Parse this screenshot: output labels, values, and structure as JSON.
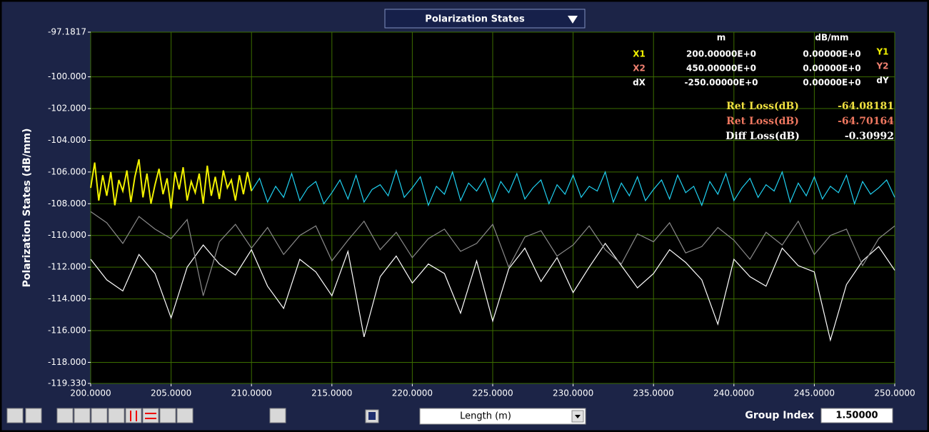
{
  "chart_data": {
    "type": "line",
    "title": "Polarization States",
    "ylabel": "Polarization  States (dB/mm)",
    "xlabel": "Length (m)",
    "xlim": [
      200,
      250
    ],
    "xticks": [
      {
        "value": 200,
        "label": "200.0000"
      },
      {
        "value": 205,
        "label": "205.0000"
      },
      {
        "value": 210,
        "label": "210.0000"
      },
      {
        "value": 215,
        "label": "215.0000"
      },
      {
        "value": 220,
        "label": "220.0000"
      },
      {
        "value": 225,
        "label": "225.0000"
      },
      {
        "value": 230,
        "label": "230.0000"
      },
      {
        "value": 235,
        "label": "235.0000"
      },
      {
        "value": 240,
        "label": "240.0000"
      },
      {
        "value": 245,
        "label": "245.0000"
      },
      {
        "value": 250,
        "label": "250.0000"
      }
    ],
    "ylim": [
      -119.33,
      -97.1817
    ],
    "yticks": [
      -97.1817,
      {
        "value": -100,
        "label": "-100.000"
      },
      {
        "value": -102,
        "label": "-102.000"
      },
      {
        "value": -104,
        "label": "-104.000"
      },
      {
        "value": -106,
        "label": "-106.000"
      },
      {
        "value": -108,
        "label": "-108.000"
      },
      {
        "value": -110,
        "label": "-110.000"
      },
      {
        "value": -112,
        "label": "-112.000"
      },
      {
        "value": -114,
        "label": "-114.000"
      },
      {
        "value": -116,
        "label": "-116.000"
      },
      {
        "value": -118,
        "label": "-118.000"
      },
      {
        "value": -119.33,
        "label": "-119.330"
      }
    ],
    "grid": true,
    "series": [
      {
        "color": "#ffffff",
        "x": [
          200,
          201,
          202,
          203,
          204,
          205,
          206,
          207,
          208,
          209,
          210,
          211,
          212,
          213,
          214,
          215,
          216,
          217,
          218,
          219,
          220,
          221,
          222,
          223,
          224,
          225,
          226,
          227,
          228,
          229,
          230,
          231,
          232,
          233,
          234,
          235,
          236,
          237,
          238,
          239,
          240,
          241,
          242,
          243,
          244,
          245,
          246,
          247,
          248,
          249,
          250
        ],
        "values": [
          -111.5,
          -112.8,
          -113.5,
          -111.2,
          -112.4,
          -115.2,
          -112.0,
          -110.6,
          -111.8,
          -112.5,
          -110.9,
          -113.2,
          -114.6,
          -111.5,
          -112.3,
          -113.8,
          -111.0,
          -116.4,
          -112.6,
          -111.3,
          -113.0,
          -111.8,
          -112.4,
          -114.9,
          -111.6,
          -115.4,
          -112.1,
          -110.8,
          -112.9,
          -111.4,
          -113.6,
          -112.0,
          -110.5,
          -111.9,
          -113.3,
          -112.4,
          -110.9,
          -111.7,
          -112.8,
          -115.6,
          -111.5,
          -112.6,
          -113.2,
          -110.8,
          -111.9,
          -112.3,
          -116.6,
          -113.1,
          -111.6,
          -110.7,
          -112.2
        ]
      },
      {
        "color": "#8a8a8a",
        "x": [
          200,
          201,
          202,
          203,
          204,
          205,
          206,
          207,
          208,
          209,
          210,
          211,
          212,
          213,
          214,
          215,
          216,
          217,
          218,
          219,
          220,
          221,
          222,
          223,
          224,
          225,
          226,
          227,
          228,
          229,
          230,
          231,
          232,
          233,
          234,
          235,
          236,
          237,
          238,
          239,
          240,
          241,
          242,
          243,
          244,
          245,
          246,
          247,
          248,
          249,
          250
        ],
        "values": [
          -108.5,
          -109.2,
          -110.5,
          -108.8,
          -109.6,
          -110.2,
          -109.0,
          -113.8,
          -110.4,
          -109.3,
          -110.8,
          -109.5,
          -111.2,
          -110.0,
          -109.4,
          -111.6,
          -110.3,
          -109.1,
          -110.9,
          -109.8,
          -111.4,
          -110.2,
          -109.6,
          -111.0,
          -110.5,
          -109.3,
          -112.0,
          -110.1,
          -109.7,
          -111.3,
          -110.6,
          -109.4,
          -110.9,
          -111.8,
          -109.9,
          -110.4,
          -109.2,
          -111.1,
          -110.7,
          -109.5,
          -110.3,
          -111.5,
          -109.8,
          -110.6,
          -109.1,
          -111.2,
          -110.0,
          -109.6,
          -111.9,
          -110.2,
          -109.4
        ]
      },
      {
        "color": "#1fd0f0",
        "x": [
          210,
          210.5,
          211,
          211.5,
          212,
          212.5,
          213,
          213.5,
          214,
          214.5,
          215,
          215.5,
          216,
          216.5,
          217,
          217.5,
          218,
          218.5,
          219,
          219.5,
          220,
          220.5,
          221,
          221.5,
          222,
          222.5,
          223,
          223.5,
          224,
          224.5,
          225,
          225.5,
          226,
          226.5,
          227,
          227.5,
          228,
          228.5,
          229,
          229.5,
          230,
          230.5,
          231,
          231.5,
          232,
          232.5,
          233,
          233.5,
          234,
          234.5,
          235,
          235.5,
          236,
          236.5,
          237,
          237.5,
          238,
          238.5,
          239,
          239.5,
          240,
          240.5,
          241,
          241.5,
          242,
          242.5,
          243,
          243.5,
          244,
          244.5,
          245,
          245.5,
          246,
          246.5,
          247,
          247.5,
          248,
          248.5,
          249,
          249.5,
          250
        ],
        "values": [
          -107.2,
          -106.4,
          -107.9,
          -106.9,
          -107.6,
          -106.1,
          -107.8,
          -107.0,
          -106.6,
          -108.0,
          -107.3,
          -106.5,
          -107.7,
          -106.2,
          -107.9,
          -107.1,
          -106.8,
          -107.5,
          -105.9,
          -107.6,
          -107.0,
          -106.3,
          -108.1,
          -106.9,
          -107.4,
          -106.0,
          -107.8,
          -106.7,
          -107.2,
          -106.4,
          -107.9,
          -106.6,
          -107.3,
          -106.1,
          -107.7,
          -107.0,
          -106.5,
          -108.0,
          -106.8,
          -107.4,
          -106.2,
          -107.6,
          -106.9,
          -107.2,
          -106.0,
          -107.9,
          -106.7,
          -107.5,
          -106.3,
          -107.8,
          -107.1,
          -106.5,
          -107.7,
          -106.2,
          -107.3,
          -106.9,
          -108.1,
          -106.6,
          -107.4,
          -106.1,
          -107.8,
          -107.0,
          -106.4,
          -107.6,
          -106.8,
          -107.2,
          -106.0,
          -107.9,
          -106.7,
          -107.5,
          -106.3,
          -107.7,
          -106.9,
          -107.3,
          -106.2,
          -108.0,
          -106.6,
          -107.4,
          -107.0,
          -106.5,
          -107.6
        ]
      },
      {
        "color": "#f0f000",
        "x": [
          200,
          200.25,
          200.5,
          200.75,
          201,
          201.25,
          201.5,
          201.75,
          202,
          202.25,
          202.5,
          202.75,
          203,
          203.25,
          203.5,
          203.75,
          204,
          204.25,
          204.5,
          204.75,
          205,
          205.25,
          205.5,
          205.75,
          206,
          206.25,
          206.5,
          206.75,
          207,
          207.25,
          207.5,
          207.75,
          208,
          208.25,
          208.5,
          208.75,
          209,
          209.25,
          209.5,
          209.75,
          210
        ],
        "values": [
          -107.0,
          -105.4,
          -107.8,
          -106.2,
          -107.5,
          -106.0,
          -108.1,
          -106.5,
          -107.2,
          -105.9,
          -107.9,
          -106.3,
          -105.2,
          -107.6,
          -106.1,
          -108.0,
          -106.8,
          -105.8,
          -107.4,
          -106.4,
          -108.3,
          -106.0,
          -107.1,
          -105.7,
          -107.8,
          -106.6,
          -107.3,
          -106.1,
          -108.0,
          -105.6,
          -107.5,
          -106.3,
          -107.7,
          -105.9,
          -107.0,
          -106.5,
          -107.8,
          -106.2,
          -107.4,
          -106.0,
          -107.2
        ]
      }
    ]
  },
  "readout": {
    "headers": [
      "m",
      "dB/mm"
    ],
    "rows": [
      {
        "left": "X1",
        "x": "200.00000E+0",
        "y": "0.00000E+0",
        "right": "Y1",
        "color": "#f0f000"
      },
      {
        "left": "X2",
        "x": "450.00000E+0",
        "y": "0.00000E+0",
        "right": "Y2",
        "color": "#f08070"
      },
      {
        "left": "dX",
        "x": "-250.00000E+0",
        "y": "0.00000E+0",
        "right": "dY",
        "color": "#ffffff"
      }
    ],
    "losses": [
      {
        "label": "Ret Loss(dB)",
        "value": "-64.08181",
        "color": "#f0e040"
      },
      {
        "label": "Ret Loss(dB)",
        "value": "-64.70164",
        "color": "#f07860"
      },
      {
        "label": "Diff Loss(dB)",
        "value": "-0.30992",
        "color": "#ffffff"
      }
    ]
  },
  "group_index": {
    "label": "Group Index",
    "value": "1.50000"
  }
}
